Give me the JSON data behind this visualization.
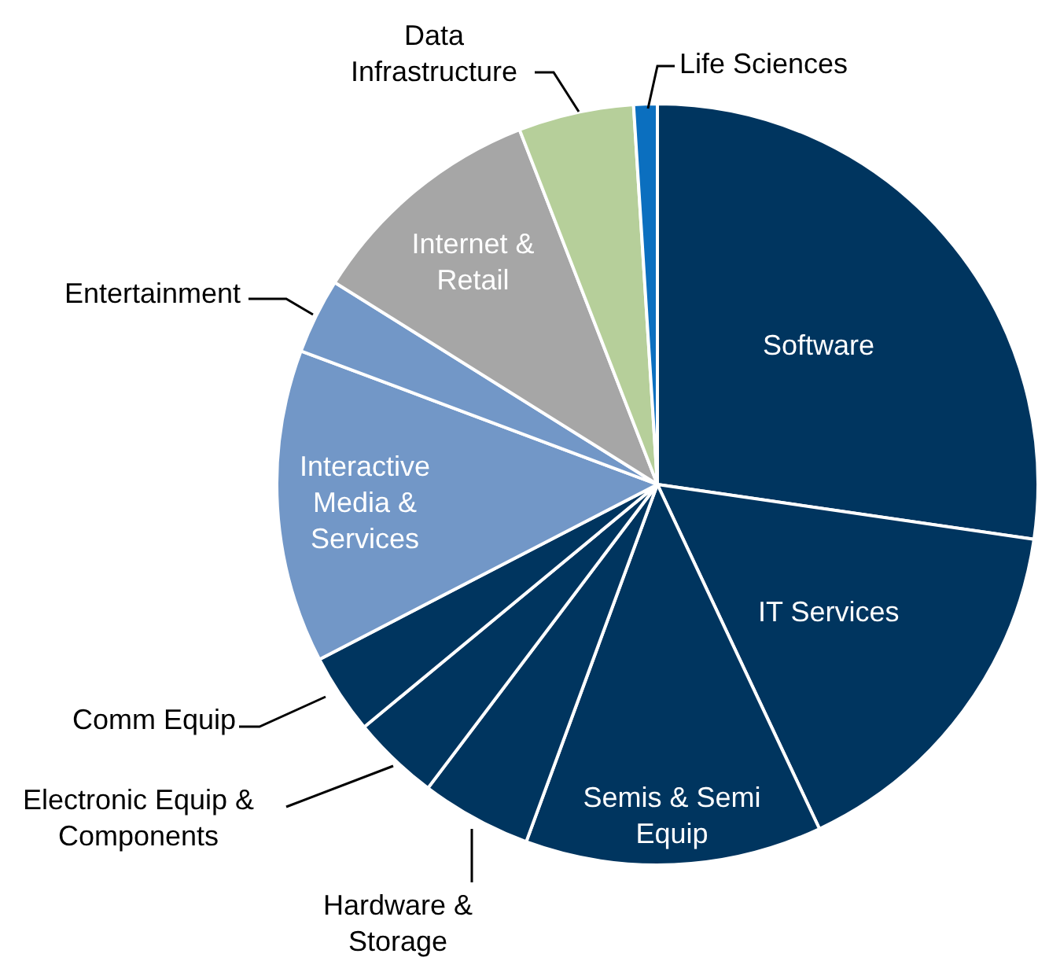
{
  "chart_data": {
    "type": "pie",
    "categories": [
      "Software",
      "IT Services",
      "Semis & Semi Equip",
      "Hardware & Storage",
      "Electronic Equip & Components",
      "Comm Equip",
      "Interactive Media & Services",
      "Entertainment",
      "Internet & Retail",
      "Data Infrastructure",
      "Life Sciences"
    ],
    "values": [
      27.3,
      15.7,
      12.6,
      4.7,
      3.7,
      3.4,
      13.3,
      3.2,
      10.2,
      4.9,
      1.0
    ],
    "colors": [
      "#00355f",
      "#00355f",
      "#00355f",
      "#00355f",
      "#00355f",
      "#00355f",
      "#7297c7",
      "#7297c7",
      "#a6a6a6",
      "#b6cf9a",
      "#0b6fbf"
    ]
  }
}
